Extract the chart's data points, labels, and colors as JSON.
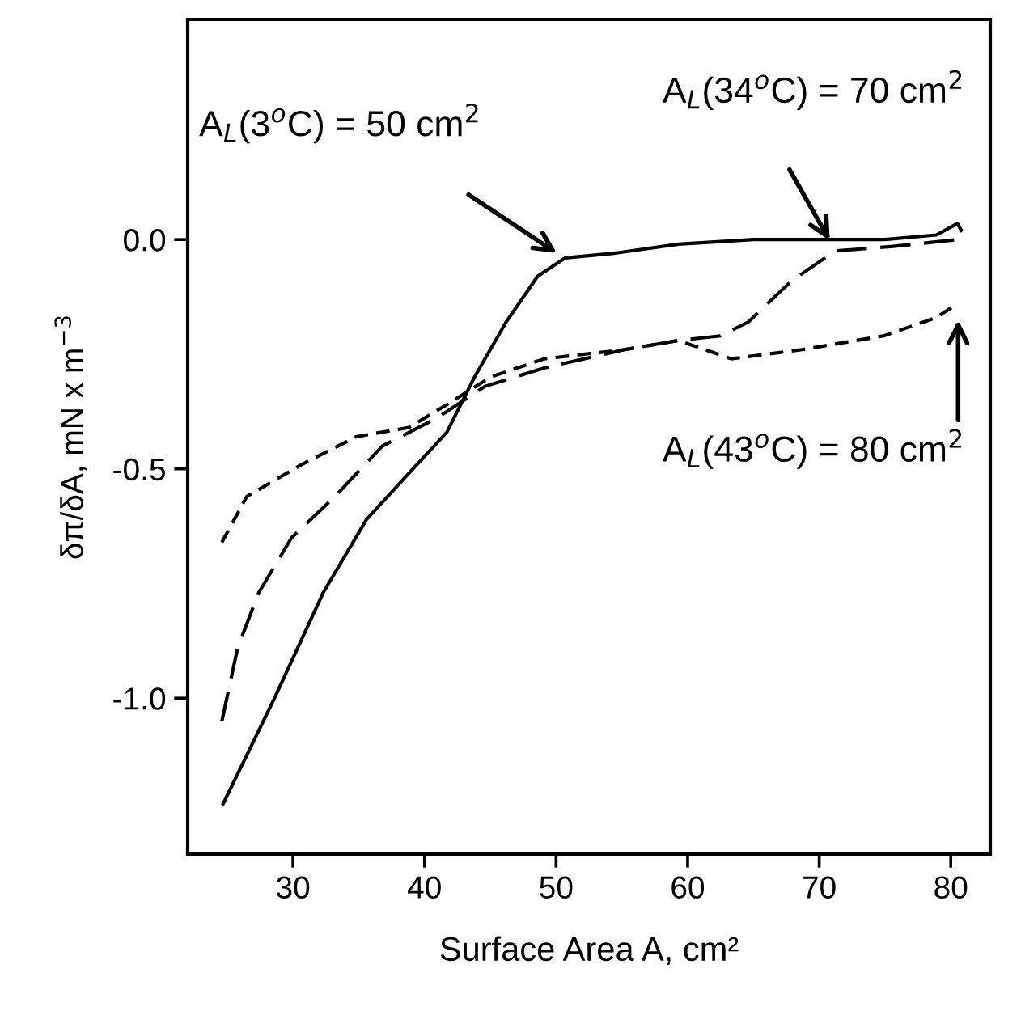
{
  "chart_data": {
    "type": "line",
    "xlabel": "Surface Area A, cm²",
    "ylabel": "δπ/δA, mN x m$^{−3}$",
    "xlim": [
      22,
      83
    ],
    "ylim": [
      -1.34,
      0.48
    ],
    "xticks": [
      30,
      40,
      50,
      60,
      70,
      80
    ],
    "yticks": [
      {
        "value": -1.0,
        "label": "-1.0"
      },
      {
        "value": -0.5,
        "label": "-0.5"
      },
      {
        "value": 0,
        "label": "0.0"
      }
    ],
    "grid": false,
    "legend": false,
    "marker": "none",
    "series": [
      {
        "color": "#000000",
        "line_style": "solid",
        "x": [
          24.7,
          28.6,
          32.3,
          35.6,
          38.8,
          41.7,
          43.8,
          46.2,
          48.6,
          50.7,
          54.4,
          59.3,
          65.0,
          70.0,
          75.0,
          78.9,
          80.5,
          80.8
        ],
        "values": [
          -1.23,
          -1.0,
          -0.77,
          -0.61,
          -0.51,
          -0.42,
          -0.3,
          -0.18,
          -0.08,
          -0.04,
          -0.03,
          -0.01,
          0.0,
          0.0,
          0.0,
          0.01,
          0.035,
          0.02
        ]
      },
      {
        "color": "#000000",
        "line_style": "dashed",
        "x": [
          24.6,
          25.8,
          27.4,
          29.9,
          33.2,
          36.8,
          40.9,
          44.6,
          49.1,
          55.2,
          59.3,
          62.5,
          64.6,
          67.9,
          71.2,
          75.6,
          80.5
        ],
        "values": [
          -1.05,
          -0.89,
          -0.77,
          -0.65,
          -0.56,
          -0.45,
          -0.39,
          -0.32,
          -0.28,
          -0.24,
          -0.22,
          -0.21,
          -0.18,
          -0.09,
          -0.025,
          -0.015,
          0.0
        ]
      },
      {
        "color": "#000000",
        "line_style": "dotted",
        "x": [
          24.6,
          26.5,
          30.7,
          34.8,
          38.8,
          41.7,
          45.0,
          49.1,
          55.2,
          59.3,
          63.3,
          68.7,
          74.9,
          78.9,
          80.5
        ],
        "values": [
          -0.66,
          -0.56,
          -0.49,
          -0.43,
          -0.41,
          -0.36,
          -0.3,
          -0.26,
          -0.24,
          -0.22,
          -0.26,
          -0.24,
          -0.21,
          -0.17,
          -0.14
        ]
      }
    ],
    "annotations": [
      "A$_{L}$(3$^{o}$C) = 50 cm$^{2}$",
      "A$_{L}$(34$^{o}$C) = 70 cm$^{2}$",
      "A$_{L}$(43$^{o}$C) = 80 cm$^{2}$"
    ]
  }
}
